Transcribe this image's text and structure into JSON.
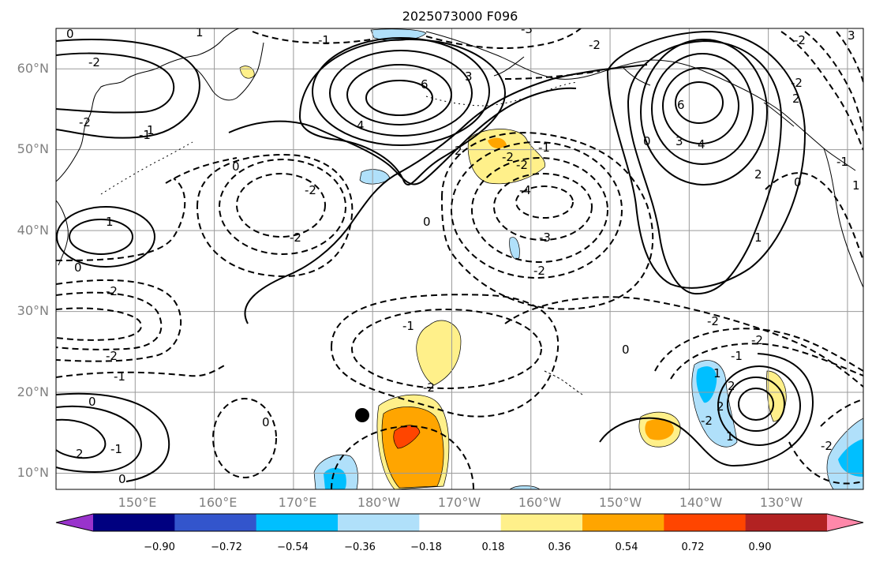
{
  "title": "2025073000 F096",
  "map": {
    "lon_range": [
      140,
      242
    ],
    "lat_range": [
      8,
      65
    ],
    "x_ticks": [
      "150°E",
      "160°E",
      "170°E",
      "180°W",
      "170°W",
      "160°W",
      "150°W",
      "140°W",
      "130°W"
    ],
    "y_ticks": [
      "10°N",
      "20°N",
      "30°N",
      "40°N",
      "50°N",
      "60°N"
    ],
    "gridlines": true,
    "colors": {
      "coast": "#000000",
      "grid": "#9a9a9a",
      "contour": "#000000"
    },
    "contour_labels": [
      {
        "text": "6"
      },
      {
        "text": "4"
      },
      {
        "text": "3"
      },
      {
        "text": "2"
      },
      {
        "text": "-1"
      },
      {
        "text": "0"
      },
      {
        "text": "6"
      },
      {
        "text": "4"
      },
      {
        "text": "3"
      },
      {
        "text": "2"
      },
      {
        "text": "1"
      },
      {
        "text": "-2"
      },
      {
        "text": "-2"
      },
      {
        "text": "-4"
      },
      {
        "text": "-3"
      },
      {
        "text": "-2"
      },
      {
        "text": "-1"
      },
      {
        "text": "0"
      },
      {
        "text": "0"
      },
      {
        "text": "-2"
      },
      {
        "text": "-2"
      },
      {
        "text": "-1"
      },
      {
        "text": "0"
      },
      {
        "text": "1"
      },
      {
        "text": "1"
      },
      {
        "text": "0"
      },
      {
        "text": "-2"
      },
      {
        "text": "-2"
      },
      {
        "text": "-1"
      },
      {
        "text": "0"
      },
      {
        "text": "-1"
      },
      {
        "text": "-2"
      },
      {
        "text": "0"
      },
      {
        "text": "0"
      },
      {
        "text": "-2"
      },
      {
        "text": "-2"
      },
      {
        "text": "-1"
      },
      {
        "text": "1"
      },
      {
        "text": "2"
      },
      {
        "text": "1"
      },
      {
        "text": "-2"
      },
      {
        "text": "2"
      },
      {
        "text": "-2"
      },
      {
        "text": "2"
      },
      {
        "text": "-1"
      },
      {
        "text": "-2"
      },
      {
        "text": "1"
      },
      {
        "text": "-2"
      },
      {
        "text": "0"
      },
      {
        "text": "0"
      },
      {
        "text": "-2"
      },
      {
        "text": "2"
      },
      {
        "text": "3"
      },
      {
        "text": "-2"
      },
      {
        "text": "-3"
      },
      {
        "text": "-2"
      },
      {
        "text": "-1"
      },
      {
        "text": "1"
      }
    ],
    "marker": "storm-position-dot"
  },
  "colorbar": {
    "colors": [
      "#9933cc",
      "#000080",
      "#3355cc",
      "#00bfff",
      "#b0e0fa",
      "#ffffff",
      "#fff08a",
      "#ffa500",
      "#ff4500",
      "#b22222",
      "#ff88aa"
    ],
    "ticks": [
      "−0.90",
      "−0.72",
      "−0.54",
      "−0.36",
      "−0.18",
      "0.18",
      "0.36",
      "0.54",
      "0.72",
      "0.90"
    ],
    "extend": "both"
  }
}
